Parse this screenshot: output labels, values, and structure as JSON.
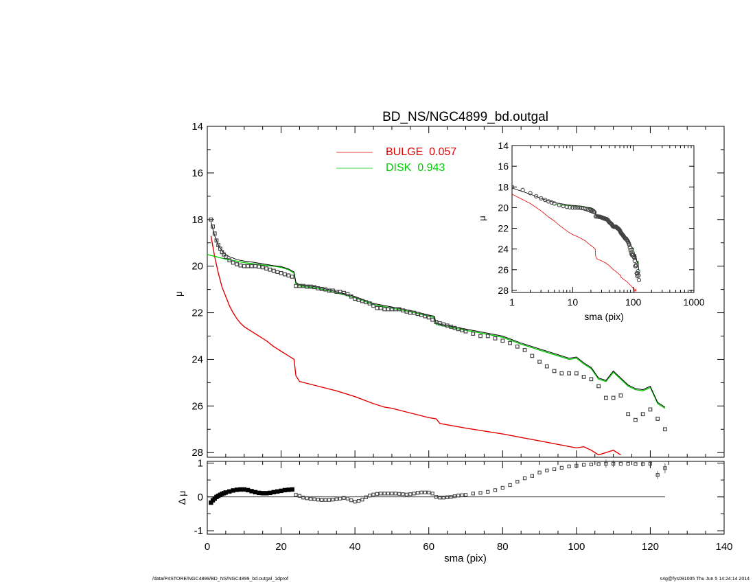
{
  "footer": {
    "left": "/data/P4STORE/NGC4899/BD_NS/NGC4899_bd.outgal_1dprof",
    "right": "s4g@fys091005  Thu Jun  5 14:24:14 2014"
  },
  "colors": {
    "bulge": "#e00000",
    "disk": "#00cc00",
    "model": "#000000",
    "data": "#444444",
    "axis": "#000000"
  },
  "chart_data": [
    {
      "id": "main",
      "type": "scatter",
      "title": "BD_NS/NGC4899_bd.outgal",
      "xlabel": "",
      "ylabel": "μ",
      "xlim": [
        0,
        140
      ],
      "ylim": [
        28.2,
        14
      ],
      "yticks": [
        14,
        16,
        18,
        20,
        22,
        24,
        26,
        28
      ],
      "legend": {
        "placement": "top-center",
        "entries": [
          {
            "label": "BULGE  0.057",
            "color": "#e00000"
          },
          {
            "label": "DISK  0.943",
            "color": "#00cc00"
          }
        ]
      },
      "series": [
        {
          "name": "BULGE",
          "kind": "line",
          "color": "#e00000",
          "x": [
            1,
            2,
            3,
            4,
            5,
            6,
            7,
            8,
            9,
            10,
            12,
            14,
            16,
            18,
            20,
            22,
            23.5,
            24,
            25,
            30,
            35,
            40,
            45,
            48,
            50,
            55,
            60,
            62,
            63,
            70,
            80,
            90,
            100,
            102,
            104,
            106,
            108,
            110,
            112
          ],
          "y": [
            18.7,
            19.6,
            20.3,
            20.9,
            21.3,
            21.7,
            22.0,
            22.25,
            22.45,
            22.6,
            22.8,
            23.0,
            23.2,
            23.45,
            23.65,
            23.85,
            24.0,
            24.7,
            24.95,
            25.15,
            25.35,
            25.6,
            25.9,
            26.05,
            26.1,
            26.3,
            26.5,
            26.55,
            26.75,
            26.95,
            27.2,
            27.5,
            27.8,
            27.75,
            27.9,
            28.1,
            28.0,
            27.9,
            28.1
          ]
        },
        {
          "name": "DISK",
          "kind": "line",
          "color": "#00cc00",
          "x": [
            0,
            5,
            10,
            15,
            18,
            20,
            22,
            23.5,
            24,
            25,
            30,
            35,
            40,
            45,
            50,
            55,
            60,
            61.5,
            62,
            65,
            70,
            75,
            80,
            85,
            90,
            95,
            98,
            100,
            102,
            104,
            106,
            108,
            110,
            112,
            114,
            116,
            118,
            120,
            122,
            124
          ],
          "y": [
            19.5,
            19.7,
            19.85,
            19.95,
            20.0,
            20.05,
            20.15,
            20.3,
            20.75,
            20.85,
            20.95,
            21.15,
            21.35,
            21.65,
            21.8,
            21.95,
            22.15,
            22.2,
            22.5,
            22.6,
            22.75,
            22.9,
            23.05,
            23.35,
            23.6,
            23.85,
            24.0,
            23.95,
            24.2,
            24.4,
            24.85,
            24.95,
            24.55,
            24.85,
            25.15,
            25.3,
            25.35,
            25.2,
            25.9,
            26.1
          ]
        },
        {
          "name": "MODEL",
          "kind": "line",
          "color": "#000000",
          "x": [
            1,
            2,
            3,
            4,
            5,
            6,
            7,
            8,
            10,
            12,
            15,
            18,
            20,
            22,
            23.5,
            24,
            25,
            30,
            35,
            40,
            45,
            50,
            55,
            60,
            61.5,
            62,
            65,
            70,
            75,
            80,
            85,
            90,
            95,
            98,
            100,
            102,
            104,
            106,
            108,
            110,
            112,
            114,
            116,
            118,
            120,
            122,
            124
          ],
          "y": [
            18.1,
            18.7,
            19.1,
            19.35,
            19.5,
            19.6,
            19.65,
            19.72,
            19.78,
            19.82,
            19.9,
            19.98,
            20.02,
            20.12,
            20.25,
            20.7,
            20.8,
            20.9,
            21.1,
            21.3,
            21.6,
            21.75,
            21.9,
            22.1,
            22.15,
            22.45,
            22.55,
            22.7,
            22.85,
            23.0,
            23.3,
            23.55,
            23.8,
            23.95,
            23.9,
            24.15,
            24.35,
            24.8,
            24.9,
            24.5,
            24.8,
            25.1,
            25.25,
            25.3,
            25.15,
            25.85,
            26.05
          ]
        },
        {
          "name": "DATA",
          "kind": "markers",
          "color": "#444444",
          "x": [
            1,
            1.5,
            2,
            2.5,
            3,
            3.5,
            4,
            4.5,
            5,
            6,
            7,
            8,
            9,
            10,
            11,
            12,
            13,
            14,
            15,
            16,
            17,
            18,
            19,
            20,
            21,
            22,
            23,
            24,
            25,
            26,
            27,
            28,
            29,
            30,
            31,
            32,
            33,
            34,
            35,
            36,
            37,
            38,
            39,
            40,
            41,
            42,
            43,
            44,
            45,
            46,
            47,
            48,
            49,
            50,
            51,
            52,
            53,
            54,
            55,
            56,
            57,
            58,
            59,
            60,
            61,
            62,
            63,
            64,
            65,
            66,
            67,
            68,
            69,
            70,
            72,
            74,
            76,
            78,
            80,
            82,
            84,
            86,
            88,
            90,
            92,
            94,
            96,
            98,
            100,
            102,
            104,
            106,
            108,
            110,
            112,
            114,
            116,
            118,
            120,
            122,
            124
          ],
          "y": [
            18.0,
            18.3,
            18.6,
            18.9,
            19.1,
            19.25,
            19.4,
            19.5,
            19.6,
            19.75,
            19.85,
            19.92,
            19.97,
            20.0,
            20.0,
            20.0,
            20.0,
            20.02,
            20.05,
            20.1,
            20.15,
            20.2,
            20.25,
            20.3,
            20.35,
            20.4,
            20.45,
            20.85,
            20.85,
            20.85,
            20.88,
            20.88,
            20.9,
            20.95,
            20.98,
            21.0,
            21.05,
            21.05,
            21.1,
            21.1,
            21.15,
            21.2,
            21.3,
            21.4,
            21.45,
            21.5,
            21.55,
            21.6,
            21.7,
            21.8,
            21.8,
            21.85,
            21.85,
            21.85,
            21.85,
            21.85,
            21.9,
            21.95,
            22.0,
            22.0,
            22.05,
            22.1,
            22.15,
            22.2,
            22.3,
            22.4,
            22.45,
            22.5,
            22.55,
            22.6,
            22.65,
            22.7,
            22.75,
            22.8,
            22.9,
            23.0,
            23.0,
            23.1,
            23.2,
            23.3,
            23.45,
            23.6,
            23.85,
            24.1,
            24.3,
            24.5,
            24.6,
            24.6,
            24.6,
            24.75,
            24.85,
            25.15,
            25.65,
            25.65,
            25.55,
            26.35,
            26.6,
            26.35,
            26.15,
            26.55,
            27.0
          ]
        }
      ]
    },
    {
      "id": "inset",
      "type": "scatter",
      "title": "",
      "xlabel": "sma (pix)",
      "ylabel": "μ",
      "xscale": "log",
      "xlim": [
        1,
        1000
      ],
      "xticks": [
        1,
        10,
        100,
        1000
      ],
      "ylim": [
        28.2,
        14
      ],
      "yticks": [
        14,
        16,
        18,
        20,
        22,
        24,
        26,
        28
      ]
    },
    {
      "id": "residual",
      "type": "scatter",
      "title": "",
      "xlabel": "sma (pix)",
      "ylabel": "Δ μ",
      "xlim": [
        0,
        140
      ],
      "xticks": [
        0,
        20,
        40,
        60,
        80,
        100,
        120,
        140
      ],
      "ylim": [
        -1.1,
        1.05
      ],
      "yticks": [
        1,
        0,
        -1
      ],
      "zero_line_x": [
        0,
        124
      ],
      "series": [
        {
          "name": "RESIDUAL",
          "kind": "markers",
          "color": "#444444",
          "x": [
            1,
            1.5,
            2,
            2.5,
            3,
            3.5,
            4,
            4.5,
            5,
            6,
            7,
            8,
            9,
            10,
            11,
            12,
            13,
            14,
            15,
            16,
            17,
            18,
            19,
            20,
            21,
            22,
            23,
            24,
            25,
            26,
            27,
            28,
            29,
            30,
            31,
            32,
            33,
            34,
            35,
            36,
            37,
            38,
            39,
            40,
            41,
            42,
            43,
            44,
            45,
            46,
            47,
            48,
            49,
            50,
            51,
            52,
            53,
            54,
            55,
            56,
            57,
            58,
            59,
            60,
            61,
            62,
            63,
            64,
            65,
            66,
            67,
            68,
            69,
            70,
            72,
            74,
            76,
            78,
            80,
            82,
            84,
            86,
            88,
            90,
            92,
            94,
            96,
            98,
            100,
            102,
            104,
            106,
            108,
            110,
            112,
            114,
            116,
            118,
            120,
            122,
            124
          ],
          "y": [
            -0.17,
            -0.1,
            -0.05,
            0.0,
            0.03,
            0.06,
            0.09,
            0.11,
            0.13,
            0.16,
            0.19,
            0.21,
            0.22,
            0.22,
            0.2,
            0.17,
            0.14,
            0.12,
            0.11,
            0.11,
            0.12,
            0.14,
            0.16,
            0.18,
            0.2,
            0.21,
            0.22,
            0.06,
            0.03,
            -0.02,
            -0.04,
            -0.06,
            -0.07,
            -0.08,
            -0.09,
            -0.09,
            -0.09,
            -0.08,
            -0.07,
            -0.05,
            -0.03,
            -0.05,
            -0.1,
            -0.14,
            -0.12,
            -0.08,
            -0.01,
            0.04,
            0.07,
            0.09,
            0.1,
            0.1,
            0.1,
            0.1,
            0.1,
            0.09,
            0.08,
            0.07,
            0.08,
            0.1,
            0.12,
            0.13,
            0.13,
            0.13,
            0.1,
            0.0,
            -0.02,
            -0.02,
            -0.01,
            0.0,
            0.02,
            0.04,
            0.05,
            0.06,
            0.1,
            0.12,
            0.15,
            0.2,
            0.27,
            0.35,
            0.45,
            0.55,
            0.62,
            0.72,
            0.78,
            0.82,
            0.86,
            0.9,
            0.92,
            0.95,
            0.96,
            0.97,
            0.98,
            0.98,
            0.98,
            0.98,
            0.97,
            0.97,
            0.98,
            0.65,
            0.85
          ],
          "err_points": [
            [
              108,
              0.98,
              0.12
            ],
            [
              110,
              0.98,
              0.1
            ],
            [
              118,
              0.98,
              0.08
            ],
            [
              122,
              0.65,
              0.12
            ],
            [
              124,
              0.85,
              0.15
            ]
          ]
        }
      ]
    }
  ]
}
